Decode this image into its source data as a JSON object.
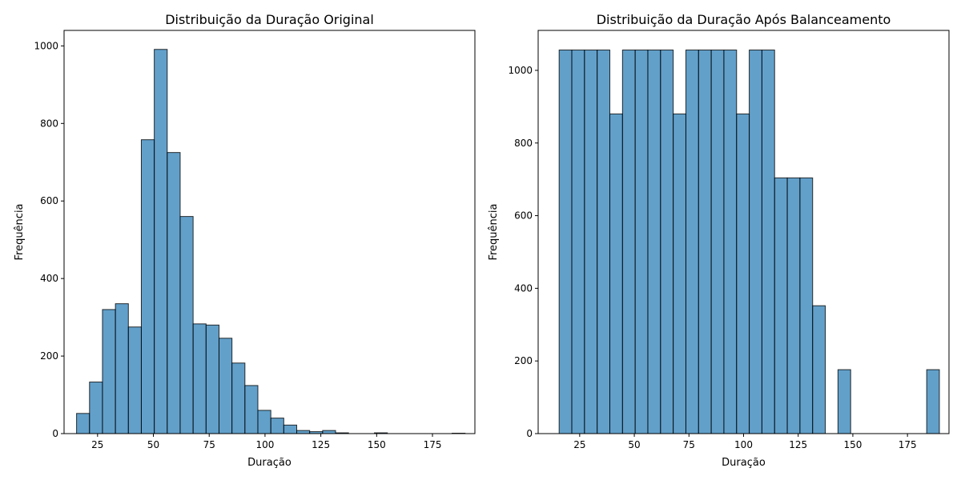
{
  "chart_data": [
    {
      "type": "bar",
      "title": "Distribuição da Duração Original",
      "xlabel": "Duração",
      "ylabel": "Frequência",
      "xlim": [
        10,
        194
      ],
      "ylim": [
        0,
        1040
      ],
      "xticks": [
        25,
        50,
        75,
        100,
        125,
        150,
        175
      ],
      "yticks": [
        0,
        200,
        400,
        600,
        800,
        1000
      ],
      "bin_start": 15.6,
      "bin_width": 5.8,
      "values": [
        52,
        133,
        320,
        335,
        275,
        758,
        991,
        725,
        560,
        283,
        280,
        246,
        182,
        124,
        60,
        40,
        22,
        8,
        5,
        8,
        2,
        0,
        0,
        2,
        0,
        0,
        0,
        0,
        0,
        1
      ],
      "bar_color": "#1f77b4",
      "edge_color": "#000000"
    },
    {
      "type": "bar",
      "title": "Distribuição da Duração Após Balanceamento",
      "xlabel": "Duração",
      "ylabel": "Frequência",
      "xlim": [
        6,
        194
      ],
      "ylim": [
        0,
        1110
      ],
      "xticks": [
        25,
        50,
        75,
        100,
        125,
        150,
        175
      ],
      "yticks": [
        0,
        200,
        400,
        600,
        800,
        1000
      ],
      "bin_start": 15.6,
      "bin_width": 5.8,
      "values": [
        1056,
        1056,
        1056,
        1056,
        880,
        1056,
        1056,
        1056,
        1056,
        880,
        1056,
        1056,
        1056,
        1056,
        880,
        1056,
        1056,
        704,
        704,
        704,
        352,
        0,
        176,
        0,
        0,
        0,
        0,
        0,
        0,
        176
      ],
      "bar_color": "#1f77b4",
      "edge_color": "#000000"
    }
  ]
}
